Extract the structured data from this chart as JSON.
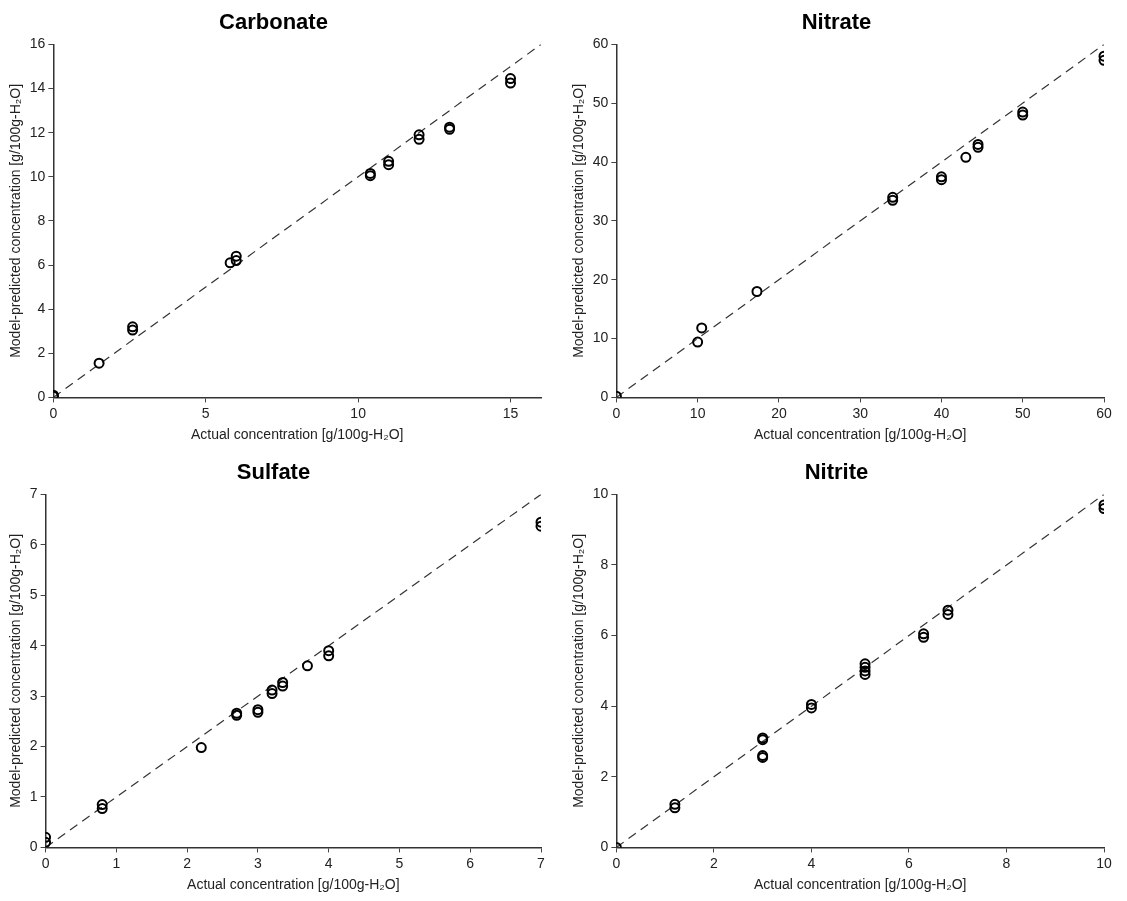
{
  "chart_data": [
    {
      "type": "scatter",
      "title": "Carbonate",
      "xlabel": "Actual concentration [g/100g-H₂O]",
      "ylabel": "Model-predicted concentration [g/100g-H₂O]",
      "xlim": [
        0,
        16
      ],
      "xticks": [
        0,
        5,
        10,
        15
      ],
      "ylim": [
        0,
        16
      ],
      "yticks": [
        0,
        2,
        4,
        6,
        8,
        10,
        12,
        14,
        16
      ],
      "grid": false,
      "marker": "circle",
      "series": [
        {
          "type": "scatter",
          "color": "#000000",
          "x": [
            0,
            0,
            1.5,
            2.6,
            2.6,
            5.8,
            6,
            6,
            10.4,
            10.4,
            11,
            11,
            12,
            12,
            13,
            13,
            15,
            15
          ],
          "values": [
            0.05,
            0.1,
            1.55,
            3.05,
            3.2,
            6.1,
            6.2,
            6.4,
            10.05,
            10.15,
            10.55,
            10.7,
            11.7,
            11.9,
            12.15,
            12.25,
            14.25,
            14.45
          ]
        },
        {
          "type": "line",
          "color": "#333333",
          "line_style": "dashed",
          "marker": "none",
          "x": [
            0,
            16
          ],
          "values": [
            0,
            16
          ]
        }
      ]
    },
    {
      "type": "scatter",
      "title": "Nitrate",
      "xlabel": "Actual concentration [g/100g-H₂O]",
      "ylabel": "Model-predicted concentration [g/100g-H₂O]",
      "xlim": [
        0,
        60
      ],
      "xticks": [
        0,
        10,
        20,
        30,
        40,
        50,
        60
      ],
      "ylim": [
        0,
        60
      ],
      "yticks": [
        0,
        10,
        20,
        30,
        40,
        50,
        60
      ],
      "grid": false,
      "marker": "circle",
      "series": [
        {
          "type": "scatter",
          "color": "#000000",
          "x": [
            0,
            10,
            10.5,
            17.3,
            34,
            34,
            40,
            40,
            43,
            44.5,
            44.5,
            50,
            50,
            60,
            60
          ],
          "values": [
            0.2,
            9.4,
            11.8,
            18,
            33.5,
            34,
            37,
            37.5,
            40.8,
            42.5,
            43,
            48,
            48.5,
            57.3,
            58
          ]
        },
        {
          "type": "line",
          "color": "#333333",
          "line_style": "dashed",
          "marker": "none",
          "x": [
            0,
            60
          ],
          "values": [
            0,
            60
          ]
        }
      ]
    },
    {
      "type": "scatter",
      "title": "Sulfate",
      "xlabel": "Actual concentration [g/100g-H₂O]",
      "ylabel": "Model-predicted concentration [g/100g-H₂O]",
      "xlim": [
        0,
        7
      ],
      "xticks": [
        0,
        1,
        2,
        3,
        4,
        5,
        6,
        7
      ],
      "ylim": [
        0,
        7
      ],
      "yticks": [
        0,
        1,
        2,
        3,
        4,
        5,
        6,
        7
      ],
      "grid": false,
      "marker": "circle",
      "series": [
        {
          "type": "scatter",
          "color": "#000000",
          "x": [
            0,
            0,
            0.8,
            0.8,
            2.2,
            2.7,
            2.7,
            3,
            3,
            3.2,
            3.2,
            3.35,
            3.35,
            3.7,
            4,
            4,
            7,
            7
          ],
          "values": [
            0.1,
            0.2,
            0.77,
            0.85,
            1.98,
            2.62,
            2.66,
            2.68,
            2.73,
            3.05,
            3.12,
            3.2,
            3.27,
            3.6,
            3.8,
            3.9,
            6.37,
            6.45
          ]
        },
        {
          "type": "line",
          "color": "#333333",
          "line_style": "dashed",
          "marker": "none",
          "x": [
            0,
            7
          ],
          "values": [
            0,
            7
          ]
        }
      ]
    },
    {
      "type": "scatter",
      "title": "Nitrite",
      "xlabel": "Actual concentration [g/100g-H₂O]",
      "ylabel": "Model-predicted concentration [g/100g-H₂O]",
      "xlim": [
        0,
        10
      ],
      "xticks": [
        0,
        2,
        4,
        6,
        8,
        10
      ],
      "ylim": [
        0,
        10
      ],
      "yticks": [
        0,
        2,
        4,
        6,
        8,
        10
      ],
      "grid": false,
      "marker": "circle",
      "series": [
        {
          "type": "scatter",
          "color": "#000000",
          "x": [
            0,
            1.2,
            1.2,
            3,
            3,
            3,
            3,
            4,
            4,
            5.1,
            5.1,
            5.1,
            5.1,
            6.3,
            6.3,
            6.8,
            6.8,
            10,
            10
          ],
          "values": [
            0,
            1.12,
            1.22,
            2.55,
            2.6,
            3.05,
            3.1,
            3.95,
            4.05,
            4.9,
            5.0,
            5.1,
            5.2,
            5.95,
            6.05,
            6.6,
            6.72,
            9.6,
            9.7
          ]
        },
        {
          "type": "line",
          "color": "#333333",
          "line_style": "dashed",
          "marker": "none",
          "x": [
            0,
            10
          ],
          "values": [
            0,
            10
          ]
        }
      ]
    }
  ]
}
